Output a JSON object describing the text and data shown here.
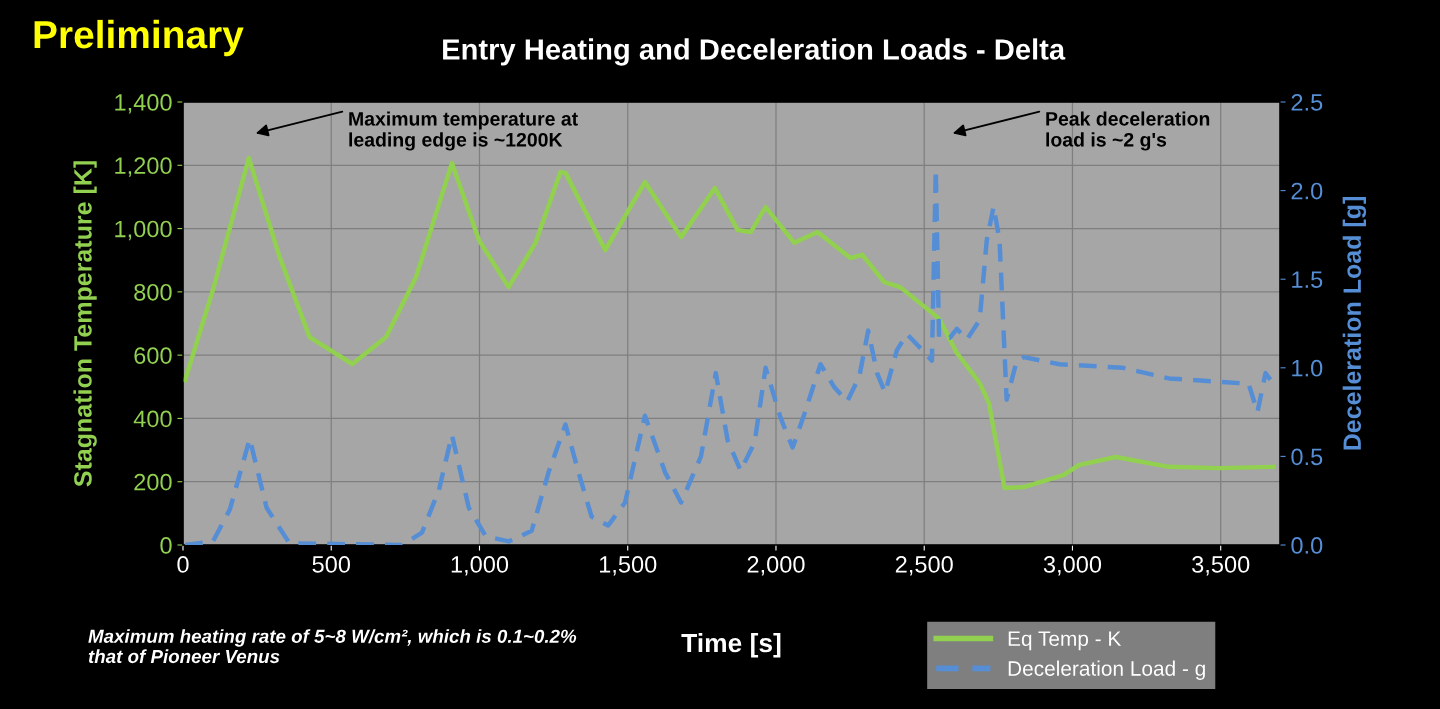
{
  "chart_data": {
    "type": "line",
    "title": "Entry Heating and Deceleration Loads - Delta",
    "xlabel": "Time [s]",
    "ylabel": "Stagnation Temperature [K]",
    "y2label": "Deceleration Load [g]",
    "annotations": [
      "Preliminary",
      "Maximum heating rate of 5~8 W/cm², which is 0.1~0.2% that of Pioneer Venus",
      "Maximum temperature at\nleading edge is ~1200K",
      "Peak deceleration\nload is ~2 g's"
    ],
    "series": [
      {
        "name": "Eq Temp - K",
        "color": "#92d050",
        "line_style": "solid",
        "x": [
          7,
          101,
          222,
          326,
          427,
          571,
          685,
          786,
          907,
          998,
          1098,
          1189,
          1273,
          1290,
          1424,
          1558,
          1680,
          1794,
          1871,
          1915,
          1965,
          2062,
          2140,
          2251,
          2291,
          2365,
          2419,
          2543,
          2553,
          2610,
          2687,
          2718,
          2771,
          2835,
          2969,
          3023,
          3147,
          3325,
          3494,
          3678
        ],
        "values": [
          521,
          806,
          1223,
          910,
          657,
          572,
          657,
          847,
          1207,
          964,
          815,
          955,
          1179,
          1176,
          932,
          1147,
          973,
          1128,
          995,
          989,
          1068,
          955,
          989,
          907,
          917,
          831,
          815,
          721,
          711,
          607,
          512,
          449,
          180,
          183,
          221,
          253,
          278,
          247,
          243,
          247
        ]
      },
      {
        "name": "Deceleration Load - g",
        "color": "#558ed5",
        "line_style": "dashed",
        "axis": "y2",
        "x": [
          7,
          101,
          158,
          225,
          282,
          359,
          739,
          806,
          863,
          907,
          964,
          1021,
          1098,
          1176,
          1233,
          1290,
          1334,
          1378,
          1434,
          1491,
          1558,
          1626,
          1680,
          1747,
          1797,
          1837,
          1881,
          1928,
          1965,
          2015,
          2056,
          2096,
          2150,
          2197,
          2240,
          2281,
          2311,
          2341,
          2368,
          2408,
          2442,
          2482,
          2526,
          2539,
          2550,
          2587,
          2610,
          2644,
          2687,
          2711,
          2734,
          2754,
          2778,
          2812,
          2835,
          2956,
          3171,
          3325,
          3594,
          3624,
          3651,
          3678
        ],
        "values": [
          0,
          0.02,
          0.2,
          0.6,
          0.21,
          0.01,
          0,
          0.07,
          0.31,
          0.62,
          0.21,
          0.05,
          0.02,
          0.08,
          0.41,
          0.68,
          0.41,
          0.16,
          0.11,
          0.24,
          0.73,
          0.41,
          0.24,
          0.5,
          0.97,
          0.59,
          0.42,
          0.58,
          1.0,
          0.72,
          0.55,
          0.74,
          1.02,
          0.89,
          0.81,
          0.95,
          1.21,
          0.97,
          0.86,
          1.1,
          1.19,
          1.12,
          1.04,
          2.12,
          1.17,
          1.17,
          1.22,
          1.16,
          1.27,
          1.72,
          1.91,
          1.72,
          0.82,
          1.04,
          1.06,
          1.02,
          1.0,
          0.94,
          0.91,
          0.75,
          0.97,
          0.91
        ]
      }
    ],
    "xlim": [
      0,
      3700
    ],
    "xticks": [
      0,
      500,
      {
        "value": 1000,
        "label": "1,000"
      },
      {
        "value": 1500,
        "label": "1,500"
      },
      {
        "value": 2000,
        "label": "2,000"
      },
      {
        "value": 2500,
        "label": "2,500"
      },
      {
        "value": 3000,
        "label": "3,000"
      },
      {
        "value": 3500,
        "label": "3,500"
      }
    ],
    "ylim": [
      0,
      1400
    ],
    "yticks": [
      0,
      200,
      400,
      600,
      800,
      {
        "value": 1000,
        "label": "1,000"
      },
      {
        "value": 1200,
        "label": "1,200"
      },
      {
        "value": 1400,
        "label": "1,400"
      }
    ],
    "y2lim": [
      0,
      2.5
    ],
    "y2ticks": [
      {
        "value": 0,
        "label": "0.0"
      },
      0.5,
      {
        "value": 1,
        "label": "1.0"
      },
      1.5,
      {
        "value": 2,
        "label": "2.0"
      },
      2.5
    ],
    "grid": true,
    "legend": "bottom right"
  }
}
